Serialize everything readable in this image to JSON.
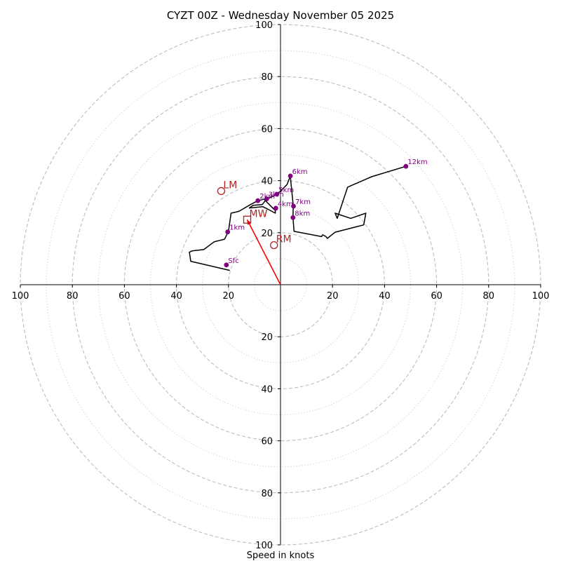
{
  "chart_data": {
    "type": "hodograph",
    "title": "CYZT 00Z - Wednesday November 05 2025",
    "xlabel": "Speed in knots",
    "range": [
      -100,
      100
    ],
    "rings_major": [
      20,
      40,
      60,
      80,
      100
    ],
    "rings_minor": [
      10,
      30,
      50,
      70,
      90
    ],
    "x_ticks": [
      {
        "v": -100,
        "label": "100"
      },
      {
        "v": -80,
        "label": "80"
      },
      {
        "v": -60,
        "label": "60"
      },
      {
        "v": -40,
        "label": "40"
      },
      {
        "v": -20,
        "label": "20"
      },
      {
        "v": 20,
        "label": "20"
      },
      {
        "v": 40,
        "label": "40"
      },
      {
        "v": 60,
        "label": "60"
      },
      {
        "v": 80,
        "label": "80"
      },
      {
        "v": 100,
        "label": "100"
      }
    ],
    "y_ticks": [
      {
        "v": 100,
        "label": "100"
      },
      {
        "v": 80,
        "label": "80"
      },
      {
        "v": 60,
        "label": "60"
      },
      {
        "v": 40,
        "label": "40"
      },
      {
        "v": 20,
        "label": "20"
      },
      {
        "v": -20,
        "label": "20"
      },
      {
        "v": -40,
        "label": "40"
      },
      {
        "v": -60,
        "label": "60"
      },
      {
        "v": -80,
        "label": "80"
      },
      {
        "v": -100,
        "label": "100"
      }
    ],
    "hodograph": [
      [
        -19.5,
        5.5
      ],
      [
        -34.5,
        9.0
      ],
      [
        -35.0,
        12.5
      ],
      [
        -34.0,
        13.0
      ],
      [
        -29.5,
        13.5
      ],
      [
        -25.5,
        16.5
      ],
      [
        -21.5,
        17.5
      ],
      [
        -20.5,
        19.5
      ],
      [
        -20.0,
        20.5
      ],
      [
        -19.0,
        27.5
      ],
      [
        -16.0,
        28.2
      ],
      [
        -11.5,
        30.8
      ],
      [
        -8.7,
        32.3
      ],
      [
        -6.5,
        32.8
      ],
      [
        -5.3,
        33.0
      ],
      [
        -7.0,
        30.8
      ],
      [
        -10.5,
        30.5
      ],
      [
        -12.0,
        29.5
      ],
      [
        -6.8,
        30.0
      ],
      [
        -4.8,
        29.0
      ],
      [
        -2.0,
        27.5
      ],
      [
        -2.0,
        28.5
      ],
      [
        -6.0,
        32.5
      ],
      [
        -1.8,
        34.5
      ],
      [
        0.0,
        36.0
      ],
      [
        2.5,
        38.5
      ],
      [
        3.8,
        41.8
      ],
      [
        4.0,
        39.5
      ],
      [
        4.9,
        30.3
      ],
      [
        4.8,
        25.8
      ],
      [
        5.0,
        23.0
      ],
      [
        5.2,
        20.5
      ],
      [
        15.8,
        18.5
      ],
      [
        16.2,
        19.2
      ],
      [
        17.5,
        18.5
      ],
      [
        18.0,
        17.8
      ],
      [
        21.0,
        20.2
      ],
      [
        32.0,
        23.0
      ],
      [
        32.8,
        27.5
      ],
      [
        27.0,
        25.5
      ],
      [
        21.0,
        27.5
      ],
      [
        21.8,
        25.5
      ],
      [
        25.8,
        37.5
      ],
      [
        35.0,
        41.5
      ],
      [
        48.2,
        45.5
      ]
    ],
    "height_markers": [
      {
        "label": "Sfc",
        "u": -20.8,
        "v": 7.6
      },
      {
        "label": "1km",
        "u": -20.3,
        "v": 20.3
      },
      {
        "label": "2km",
        "u": -8.7,
        "v": 32.3
      },
      {
        "label": "3km",
        "u": -5.3,
        "v": 33.0
      },
      {
        "label": "4km",
        "u": -1.8,
        "v": 29.4
      },
      {
        "label": "5km",
        "u": -1.4,
        "v": 34.8
      },
      {
        "label": "6km",
        "u": 3.8,
        "v": 41.8
      },
      {
        "label": "7km",
        "u": 5.0,
        "v": 30.2
      },
      {
        "label": "8km",
        "u": 4.8,
        "v": 25.8
      },
      {
        "label": "12km",
        "u": 48.2,
        "v": 45.5
      }
    ],
    "storm_motion": {
      "LM": {
        "label": "LM",
        "u": -22.8,
        "v": 36.0
      },
      "RM": {
        "label": "RM",
        "u": -2.5,
        "v": 15.2
      },
      "MW": {
        "label": "MW",
        "u": -12.8,
        "v": 25.0
      }
    },
    "colors": {
      "hodograph": "#000000",
      "height_marker": "#800080",
      "storm_motion": "#b22222",
      "mean_wind_vector": "#ff0000"
    }
  }
}
